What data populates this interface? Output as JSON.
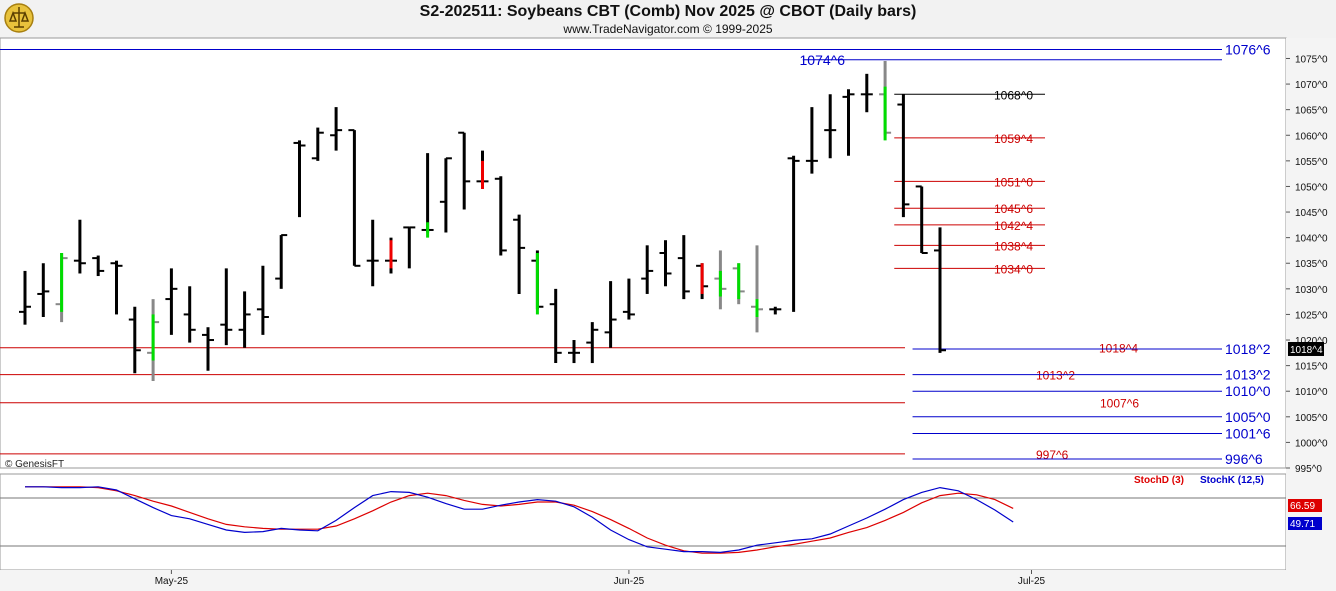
{
  "header": {
    "title": "S2-202511:  Soybeans CBT (Comb) Nov 2025 @ CBOT  (Daily bars)",
    "subtitle": "www.TradeNavigator.com © 1999-2025"
  },
  "colors": {
    "up_bar": "#00dd00",
    "down_bar": "#ee0000",
    "neutral_bar": "#000000",
    "projection_bar": "#888888",
    "support_line": "#cc0000",
    "blue_line": "#0000cc",
    "stoch_d": "#dd0000",
    "stoch_k": "#0000cc"
  },
  "watermark": "© GenesisFT",
  "chart_data": [
    {
      "type": "ohlc",
      "name": "price",
      "title": "S2-202511:  Soybeans CBT (Comb) Nov 2025 @ CBOT  (Daily bars)",
      "ylim": [
        995,
        1079
      ],
      "y_ticks": [
        995,
        1000,
        1005,
        1010,
        1015,
        1020,
        1025,
        1030,
        1035,
        1040,
        1045,
        1050,
        1055,
        1060,
        1065,
        1070,
        1075
      ],
      "y_tick_labels": [
        "995^0",
        "1000^0",
        "1005^0",
        "1010^0",
        "1015^0",
        "1020^0",
        "1025^0",
        "1030^0",
        "1035^0",
        "1040^0",
        "1045^0",
        "1050^0",
        "1055^0",
        "1060^0",
        "1065^0",
        "1070^0",
        "1075^0"
      ],
      "x_labels": [
        {
          "label": "May-25",
          "index": 8
        },
        {
          "label": "Jun-25",
          "index": 33
        },
        {
          "label": "Jul-25",
          "index": 55
        }
      ],
      "last_price": "1018^4",
      "bars": [
        {
          "o": 1025.5,
          "h": 1033.5,
          "l": 1023.0,
          "c": 1026.5,
          "k": "n"
        },
        {
          "o": 1029.0,
          "h": 1035.0,
          "l": 1024.5,
          "c": 1029.5,
          "k": "n"
        },
        {
          "o": 1027.0,
          "h": 1037.0,
          "l": 1023.5,
          "c": 1036.0,
          "k": "g"
        },
        {
          "o": 1035.5,
          "h": 1043.5,
          "l": 1033.0,
          "c": 1035.0,
          "k": "n"
        },
        {
          "o": 1036.0,
          "h": 1036.5,
          "l": 1032.5,
          "c": 1033.5,
          "k": "n"
        },
        {
          "o": 1035.0,
          "h": 1035.5,
          "l": 1025.0,
          "c": 1034.5,
          "k": "n"
        },
        {
          "o": 1024.0,
          "h": 1026.5,
          "l": 1013.5,
          "c": 1018.0,
          "k": "n"
        },
        {
          "o": 1017.5,
          "h": 1028.0,
          "l": 1012.0,
          "c": 1023.5,
          "k": "g"
        },
        {
          "o": 1028.0,
          "h": 1034.0,
          "l": 1021.0,
          "c": 1030.0,
          "k": "n"
        },
        {
          "o": 1025.0,
          "h": 1030.5,
          "l": 1019.5,
          "c": 1022.0,
          "k": "n"
        },
        {
          "o": 1021.0,
          "h": 1022.5,
          "l": 1014.0,
          "c": 1020.0,
          "k": "n"
        },
        {
          "o": 1023.0,
          "h": 1034.0,
          "l": 1019.0,
          "c": 1022.0,
          "k": "n"
        },
        {
          "o": 1022.0,
          "h": 1029.5,
          "l": 1018.5,
          "c": 1025.0,
          "k": "n"
        },
        {
          "o": 1026.0,
          "h": 1034.5,
          "l": 1021.0,
          "c": 1024.5,
          "k": "n"
        },
        {
          "o": 1032.0,
          "h": 1040.5,
          "l": 1030.0,
          "c": 1040.5,
          "k": "n"
        },
        {
          "o": 1058.5,
          "h": 1059.0,
          "l": 1044.0,
          "c": 1058.0,
          "k": "n"
        },
        {
          "o": 1055.5,
          "h": 1061.5,
          "l": 1055.0,
          "c": 1060.5,
          "k": "n"
        },
        {
          "o": 1060.0,
          "h": 1065.5,
          "l": 1057.0,
          "c": 1061.0,
          "k": "n"
        },
        {
          "o": 1061.0,
          "h": 1061.0,
          "l": 1034.5,
          "c": 1034.5,
          "k": "n"
        },
        {
          "o": 1035.5,
          "h": 1043.5,
          "l": 1030.5,
          "c": 1035.5,
          "k": "n"
        },
        {
          "o": 1035.5,
          "h": 1040.0,
          "l": 1033.0,
          "c": 1035.5,
          "k": "r"
        },
        {
          "o": 1042.0,
          "h": 1042.0,
          "l": 1034.0,
          "c": 1042.0,
          "k": "n"
        },
        {
          "o": 1041.5,
          "h": 1056.5,
          "l": 1041.0,
          "c": 1041.5,
          "k": "g"
        },
        {
          "o": 1047.0,
          "h": 1055.5,
          "l": 1041.0,
          "c": 1055.5,
          "k": "n"
        },
        {
          "o": 1060.5,
          "h": 1060.5,
          "l": 1045.5,
          "c": 1051.0,
          "k": "n"
        },
        {
          "o": 1051.0,
          "h": 1057.0,
          "l": 1050.5,
          "c": 1051.0,
          "k": "r"
        },
        {
          "o": 1051.5,
          "h": 1052.0,
          "l": 1036.5,
          "c": 1037.5,
          "k": "n"
        },
        {
          "o": 1043.5,
          "h": 1044.5,
          "l": 1029.0,
          "c": 1038.0,
          "k": "n"
        },
        {
          "o": 1035.5,
          "h": 1037.5,
          "l": 1026.0,
          "c": 1026.5,
          "k": "g"
        },
        {
          "o": 1027.0,
          "h": 1030.0,
          "l": 1015.5,
          "c": 1017.5,
          "k": "n"
        },
        {
          "o": 1017.5,
          "h": 1020.0,
          "l": 1015.5,
          "c": 1017.5,
          "k": "n"
        },
        {
          "o": 1019.5,
          "h": 1023.5,
          "l": 1015.5,
          "c": 1022.0,
          "k": "n"
        },
        {
          "o": 1021.5,
          "h": 1031.5,
          "l": 1018.5,
          "c": 1024.0,
          "k": "n"
        },
        {
          "o": 1025.5,
          "h": 1032.0,
          "l": 1024.0,
          "c": 1025.0,
          "k": "n"
        },
        {
          "o": 1032.0,
          "h": 1038.5,
          "l": 1029.0,
          "c": 1033.5,
          "k": "n"
        },
        {
          "o": 1037.0,
          "h": 1039.5,
          "l": 1030.5,
          "c": 1033.0,
          "k": "n"
        },
        {
          "o": 1036.0,
          "h": 1040.5,
          "l": 1028.0,
          "c": 1029.5,
          "k": "n"
        },
        {
          "o": 1034.5,
          "h": 1035.0,
          "l": 1028.0,
          "c": 1030.5,
          "k": "r"
        },
        {
          "o": 1032.0,
          "h": 1037.5,
          "l": 1026.0,
          "c": 1030.0,
          "k": "g"
        },
        {
          "o": 1034.0,
          "h": 1035.0,
          "l": 1027.0,
          "c": 1029.5,
          "k": "g"
        },
        {
          "o": 1026.5,
          "h": 1038.5,
          "l": 1021.5,
          "c": 1026.0,
          "k": "g"
        },
        {
          "o": 1026.0,
          "h": 1026.5,
          "l": 1025.0,
          "c": 1026.0,
          "k": "n"
        },
        {
          "o": 1055.5,
          "h": 1056.0,
          "l": 1025.5,
          "c": 1055.0,
          "k": "n"
        },
        {
          "o": 1055.0,
          "h": 1065.5,
          "l": 1052.5,
          "c": 1055.0,
          "k": "n"
        },
        {
          "o": 1061.0,
          "h": 1068.0,
          "l": 1055.5,
          "c": 1061.0,
          "k": "n"
        },
        {
          "o": 1067.5,
          "h": 1069.0,
          "l": 1056.0,
          "c": 1068.0,
          "k": "n"
        },
        {
          "o": 1068.0,
          "h": 1072.0,
          "l": 1064.5,
          "c": 1068.0,
          "k": "n"
        },
        {
          "o": 1068.0,
          "h": 1074.5,
          "l": 1060.0,
          "c": 1060.5,
          "k": "g"
        },
        {
          "o": 1066.0,
          "h": 1068.0,
          "l": 1044.0,
          "c": 1046.5,
          "k": "n"
        },
        {
          "o": 1050.0,
          "h": 1050.0,
          "l": 1037.0,
          "c": 1037.0,
          "k": "n"
        },
        {
          "o": 1037.5,
          "h": 1042.0,
          "l": 1017.5,
          "c": 1018.0,
          "k": "n"
        }
      ],
      "levels": [
        {
          "label": "1076^6",
          "value": 1076.75,
          "color": "#0000cc",
          "start": -0.5,
          "label_side": "right"
        },
        {
          "label": "1074^6",
          "value": 1074.75,
          "color": "#0000cc",
          "start": 42.5,
          "label_side": "left"
        },
        {
          "label": "1068^0",
          "value": 1068.0,
          "color": "#000000",
          "start": 47.5,
          "label_side": "mid"
        },
        {
          "label": "1059^4",
          "value": 1059.5,
          "color": "#cc0000",
          "start": 47.5,
          "label_side": "mid"
        },
        {
          "label": "1051^0",
          "value": 1051.0,
          "color": "#cc0000",
          "start": 47.5,
          "label_side": "mid"
        },
        {
          "label": "1045^6",
          "value": 1045.75,
          "color": "#cc0000",
          "start": 47.5,
          "label_side": "mid"
        },
        {
          "label": "1042^4",
          "value": 1042.5,
          "color": "#cc0000",
          "start": 47.5,
          "label_side": "mid"
        },
        {
          "label": "1038^4",
          "value": 1038.5,
          "color": "#cc0000",
          "start": 47.5,
          "label_side": "mid"
        },
        {
          "label": "1034^0",
          "value": 1034.0,
          "color": "#cc0000",
          "start": 47.5,
          "label_side": "mid"
        },
        {
          "label": "1018^4",
          "value": 1018.5,
          "color": "#cc0000",
          "start": -0.5,
          "label_side": "mid2"
        },
        {
          "label": "1018^2",
          "value": 1018.25,
          "color": "#0000cc",
          "start": 48.5,
          "label_side": "right"
        },
        {
          "label": "1013^2",
          "value": 1013.25,
          "color": "#cc0000",
          "start": -0.5,
          "label_side": "mid2"
        },
        {
          "label": "1013^2",
          "value": 1013.25,
          "color": "#0000cc",
          "start": 48.5,
          "label_side": "right"
        },
        {
          "label": "1010^0",
          "value": 1010.0,
          "color": "#0000cc",
          "start": 48.5,
          "label_side": "right"
        },
        {
          "label": "1007^6",
          "value": 1007.75,
          "color": "#cc0000",
          "start": -0.5,
          "label_side": "mid2"
        },
        {
          "label": "1005^0",
          "value": 1005.0,
          "color": "#0000cc",
          "start": 48.5,
          "label_side": "right"
        },
        {
          "label": "1001^6",
          "value": 1001.75,
          "color": "#0000cc",
          "start": 48.5,
          "label_side": "right"
        },
        {
          "label": "997^6",
          "value": 997.75,
          "color": "#cc0000",
          "start": -0.5,
          "label_side": "mid2"
        },
        {
          "label": "996^6",
          "value": 996.75,
          "color": "#0000cc",
          "start": 48.5,
          "label_side": "right"
        }
      ]
    },
    {
      "type": "line",
      "name": "stochastic",
      "ylim": [
        0,
        100
      ],
      "overbought": 80,
      "oversold": 20,
      "legend": [
        {
          "name": "StochD (3)",
          "color": "#dd0000"
        },
        {
          "name": "StochK (12,5)",
          "color": "#0000cc"
        }
      ],
      "series": [
        {
          "name": "StochD (3)",
          "last": "66.59",
          "values": [
            94,
            94,
            94,
            94,
            93,
            89,
            83,
            76,
            70,
            62,
            54,
            47,
            44,
            42,
            41,
            41,
            41,
            45,
            54,
            64,
            75,
            83,
            86,
            83,
            77,
            72,
            70,
            72,
            75,
            75,
            71,
            63,
            53,
            42,
            30,
            21,
            14,
            11,
            11,
            12,
            15,
            19,
            22,
            26,
            30,
            37,
            43,
            52,
            62,
            74,
            83,
            86,
            84,
            78,
            67
          ]
        },
        {
          "name": "StochK (12,5)",
          "last": "49.71",
          "values": [
            94,
            94,
            93,
            93,
            94,
            90,
            79,
            68,
            58,
            54,
            47,
            40,
            37,
            38,
            42,
            40,
            39,
            52,
            68,
            83,
            88,
            87,
            81,
            73,
            66,
            66,
            71,
            75,
            78,
            76,
            69,
            56,
            40,
            28,
            19,
            16,
            13,
            13,
            12,
            15,
            21,
            24,
            27,
            29,
            35,
            45,
            55,
            66,
            78,
            87,
            93,
            89,
            78,
            65,
            50
          ]
        }
      ]
    }
  ]
}
